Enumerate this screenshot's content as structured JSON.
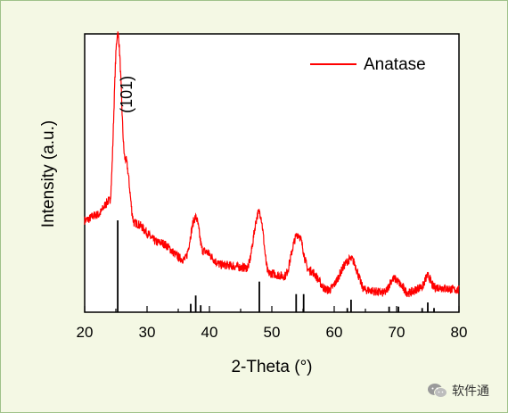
{
  "chart_data": {
    "type": "line",
    "xlabel": "2-Theta (°)",
    "ylabel": "Intensity (a.u.)",
    "xlim": [
      20,
      80
    ],
    "x_ticks": [
      20,
      30,
      40,
      50,
      60,
      70,
      80
    ],
    "ylim": [
      0,
      100
    ],
    "y_tick_labels_shown": false,
    "grid": false,
    "legend": {
      "position": "top-right"
    },
    "series": [
      {
        "name": "Anatase",
        "color": "#ff0000",
        "style": "noisy-line",
        "baseline": [
          [
            20,
            33
          ],
          [
            22,
            35
          ],
          [
            24,
            40
          ],
          [
            25.3,
            100
          ],
          [
            26.5,
            55
          ],
          [
            28,
            32
          ],
          [
            32,
            25
          ],
          [
            36,
            19
          ],
          [
            37.8,
            34
          ],
          [
            39,
            22
          ],
          [
            42,
            17
          ],
          [
            46,
            16
          ],
          [
            48,
            36
          ],
          [
            49.5,
            14
          ],
          [
            52,
            13
          ],
          [
            54.2,
            28
          ],
          [
            56,
            15
          ],
          [
            59,
            8
          ],
          [
            62.7,
            19
          ],
          [
            65,
            8
          ],
          [
            68,
            7
          ],
          [
            69.5,
            12
          ],
          [
            72,
            7
          ],
          [
            74,
            9
          ],
          [
            75,
            13
          ],
          [
            76,
            9
          ],
          [
            80,
            8
          ]
        ]
      }
    ],
    "reference_lines": [
      {
        "x": 25.3,
        "height": 33
      },
      {
        "x": 37.0,
        "height": 3
      },
      {
        "x": 37.8,
        "height": 6
      },
      {
        "x": 38.6,
        "height": 2.5
      },
      {
        "x": 48.0,
        "height": 11
      },
      {
        "x": 53.9,
        "height": 6.5
      },
      {
        "x": 55.1,
        "height": 6.5
      },
      {
        "x": 62.1,
        "height": 1.5
      },
      {
        "x": 62.7,
        "height": 4.5
      },
      {
        "x": 68.8,
        "height": 2
      },
      {
        "x": 70.3,
        "height": 2
      },
      {
        "x": 74.1,
        "height": 1.5
      },
      {
        "x": 75.0,
        "height": 3.5
      },
      {
        "x": 76.0,
        "height": 1.5
      }
    ],
    "annotations": [
      {
        "text": "(101)",
        "x": 27.6,
        "y": 85,
        "rotate": -90
      }
    ]
  },
  "watermark": {
    "text": "软件通",
    "icon": "wechat-icon"
  }
}
